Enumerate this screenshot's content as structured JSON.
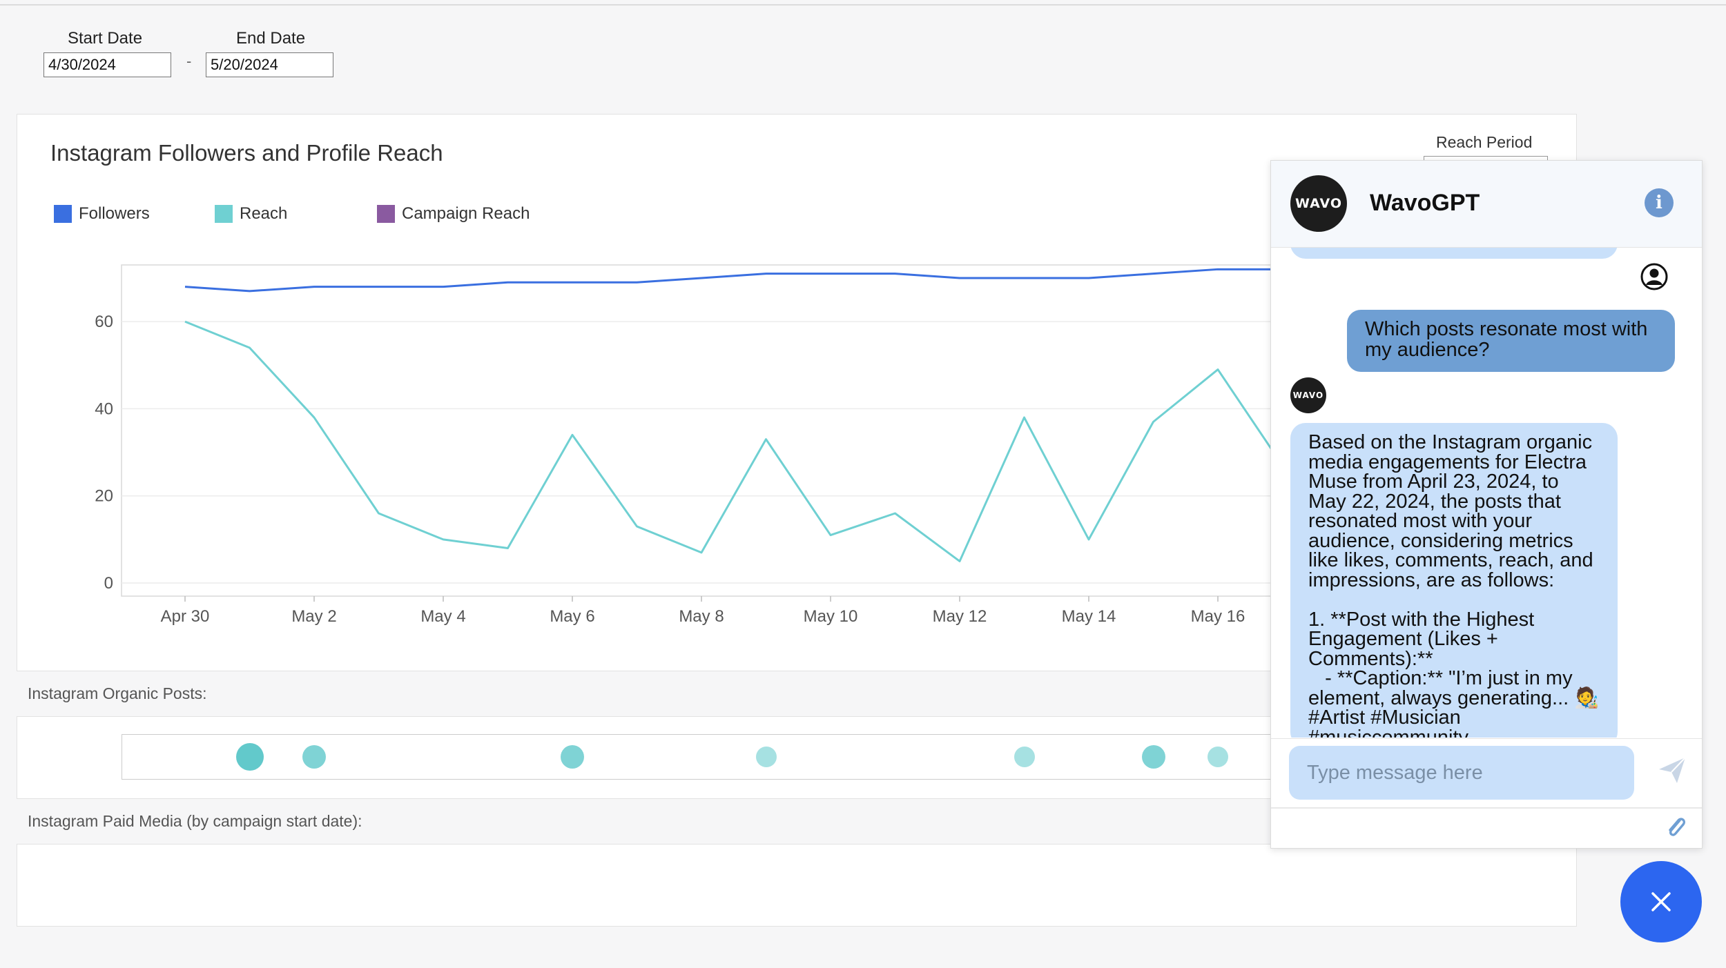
{
  "filters": {
    "start_label": "Start Date",
    "start_value": "4/30/2024",
    "end_label": "End Date",
    "end_value": "5/20/2024",
    "separator": "-"
  },
  "reach_period_label": "Reach Period",
  "chart_data": {
    "type": "line",
    "title": "Instagram Followers and Profile Reach",
    "legend": [
      "Followers",
      "Reach",
      "Campaign Reach"
    ],
    "colors": {
      "Followers": "#3a6fe0",
      "Reach": "#6fd0d2",
      "Campaign Reach": "#8a5aa0"
    },
    "x_dates": [
      "2024-04-30",
      "2024-05-01",
      "2024-05-02",
      "2024-05-03",
      "2024-05-04",
      "2024-05-05",
      "2024-05-06",
      "2024-05-07",
      "2024-05-08",
      "2024-05-09",
      "2024-05-10",
      "2024-05-11",
      "2024-05-12",
      "2024-05-13",
      "2024-05-14",
      "2024-05-15",
      "2024-05-16",
      "2024-05-17",
      "2024-05-18",
      "2024-05-19",
      "2024-05-20"
    ],
    "tick_labels": [
      "Apr 30",
      "May 2",
      "May 4",
      "May 6",
      "May 8",
      "May 10",
      "May 12",
      "May 14",
      "May 16"
    ],
    "y_ticks": [
      0,
      20,
      40,
      60
    ],
    "ylim": [
      -3,
      73
    ],
    "series": [
      {
        "name": "Followers",
        "values": [
          68,
          67,
          68,
          68,
          68,
          69,
          69,
          69,
          70,
          71,
          71,
          71,
          70,
          70,
          70,
          71,
          72,
          72,
          null,
          null,
          null
        ]
      },
      {
        "name": "Reach",
        "values": [
          60,
          54,
          38,
          16,
          10,
          8,
          34,
          13,
          7,
          33,
          11,
          16,
          5,
          38,
          10,
          37,
          49,
          27,
          null,
          null,
          null
        ]
      }
    ],
    "grid": true
  },
  "organic_posts": {
    "label": "Instagram Organic Posts:",
    "dates": [
      "2024-05-01",
      "2024-05-02",
      "2024-05-06",
      "2024-05-09",
      "2024-05-13",
      "2024-05-15",
      "2024-05-16"
    ],
    "size": [
      "large",
      "medium",
      "medium",
      "small",
      "small",
      "medium",
      "small"
    ]
  },
  "paid_media_label": "Instagram Paid Media (by campaign start date):",
  "chat": {
    "title": "WavoGPT",
    "logo_text": "WAVO",
    "user_message": "Which posts resonate most with my audience?",
    "bot_message_lines": [
      "Based on the Instagram organic",
      "media engagements for Electra",
      "Muse from April 23, 2024, to",
      "May 22, 2024, the posts that",
      "resonated most with your",
      "audience, considering metrics",
      "like likes, comments, reach, and",
      "impressions, are as follows:",
      "",
      "1. **Post with the Highest",
      "Engagement (Likes +",
      "Comments):**",
      "   - **Caption:** \"I’m just in my",
      "element, always generating... 🧑‍🎨",
      "#Artist #Musician",
      "#musiccommunity"
    ],
    "input_placeholder": "Type message here"
  },
  "icons": {
    "info": "info-icon",
    "user": "user-avatar-icon",
    "send": "send-icon",
    "attach": "paperclip-icon",
    "close": "close-icon"
  }
}
